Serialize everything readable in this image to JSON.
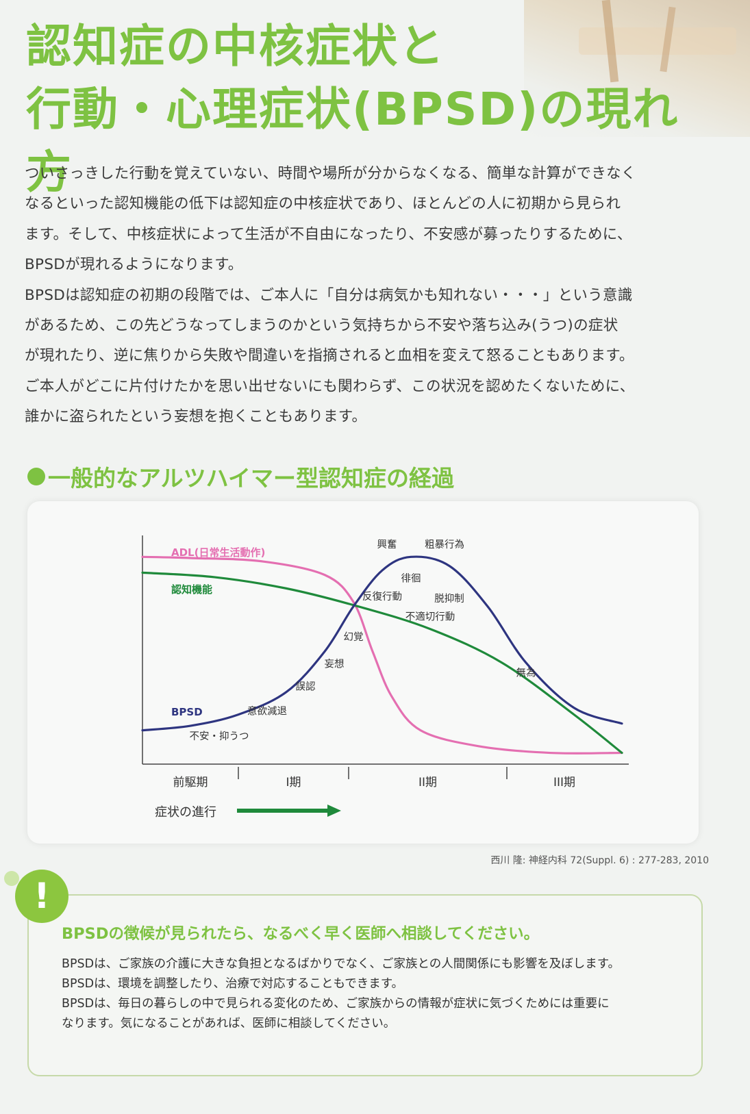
{
  "title": {
    "line1": "認知症の中核症状と",
    "line2": "行動・心理症状(BPSD)の現れ方"
  },
  "intro_lines": [
    "ついさっきした行動を覚えていない、時間や場所が分からなくなる、簡単な計算ができなく",
    "なるといった認知機能の低下は認知症の中核症状であり、ほとんどの人に初期から見られ",
    "ます。そして、中核症状によって生活が不自由になったり、不安感が募ったりするために、",
    "BPSDが現れるようになります。",
    "BPSDは認知症の初期の段階では、ご本人に「自分は病気かも知れない・・・」という意識",
    "があるため、この先どうなってしまうのかという気持ちから不安や落ち込み(うつ)の症状",
    "が現れたり、逆に焦りから失敗や間違いを指摘されると血相を変えて怒ることもあります。",
    "ご本人がどこに片付けたかを思い出せないにも関わらず、この状況を認めたくないために、",
    "誰かに盗られたという妄想を抱くこともあります。"
  ],
  "section_heading": "一般的なアルツハイマー型認知症の経過",
  "chart_data": {
    "type": "line",
    "x_stages": [
      "前駆期",
      "I期",
      "II期",
      "III期"
    ],
    "progress_label": "症状の進行",
    "series": [
      {
        "name": "ADL(日常生活動作)",
        "color": "#e46fb1",
        "values": [
          [
            0,
            0.92
          ],
          [
            0.1,
            0.915
          ],
          [
            0.25,
            0.9
          ],
          [
            0.38,
            0.84
          ],
          [
            0.44,
            0.72
          ],
          [
            0.48,
            0.5
          ],
          [
            0.52,
            0.3
          ],
          [
            0.58,
            0.15
          ],
          [
            0.7,
            0.08
          ],
          [
            0.85,
            0.05
          ],
          [
            1.0,
            0.05
          ]
        ]
      },
      {
        "name": "認知機能",
        "color": "#1f8a3b",
        "values": [
          [
            0,
            0.85
          ],
          [
            0.15,
            0.83
          ],
          [
            0.3,
            0.78
          ],
          [
            0.45,
            0.7
          ],
          [
            0.6,
            0.6
          ],
          [
            0.75,
            0.45
          ],
          [
            0.9,
            0.22
          ],
          [
            1.0,
            0.05
          ]
        ]
      },
      {
        "name": "BPSD",
        "color": "#2e3580",
        "values": [
          [
            0,
            0.15
          ],
          [
            0.1,
            0.17
          ],
          [
            0.2,
            0.22
          ],
          [
            0.3,
            0.32
          ],
          [
            0.38,
            0.5
          ],
          [
            0.44,
            0.7
          ],
          [
            0.5,
            0.86
          ],
          [
            0.56,
            0.92
          ],
          [
            0.64,
            0.88
          ],
          [
            0.72,
            0.7
          ],
          [
            0.8,
            0.45
          ],
          [
            0.9,
            0.25
          ],
          [
            1.0,
            0.18
          ]
        ]
      }
    ],
    "annotations": [
      {
        "text": "不安・抑うつ",
        "x": 0.16,
        "y": 0.11
      },
      {
        "text": "意欲減退",
        "x": 0.26,
        "y": 0.22
      },
      {
        "text": "誤認",
        "x": 0.34,
        "y": 0.33
      },
      {
        "text": "妄想",
        "x": 0.4,
        "y": 0.43
      },
      {
        "text": "幻覚",
        "x": 0.44,
        "y": 0.55
      },
      {
        "text": "反復行動",
        "x": 0.5,
        "y": 0.73
      },
      {
        "text": "徘徊",
        "x": 0.56,
        "y": 0.81
      },
      {
        "text": "興奮",
        "x": 0.51,
        "y": 0.96
      },
      {
        "text": "粗暴行為",
        "x": 0.63,
        "y": 0.96
      },
      {
        "text": "脱抑制",
        "x": 0.64,
        "y": 0.72
      },
      {
        "text": "不適切行動",
        "x": 0.6,
        "y": 0.64
      },
      {
        "text": "無為",
        "x": 0.8,
        "y": 0.39
      }
    ]
  },
  "citation": "西川 隆: 神経内科 72(Suppl. 6) : 277-283, 2010",
  "note": {
    "icon_symbol": "!",
    "heading": "BPSDの徴候が見られたら、なるべく早く医師へ相談してください。",
    "lines": [
      "BPSDは、ご家族の介護に大きな負担となるばかりでなく、ご家族との人間関係にも影響を及ぼします。",
      "BPSDは、環境を調整したり、治療で対応することもできます。",
      "BPSDは、毎日の暮らしの中で見られる変化のため、ご家族からの情報が症状に気づくためには重要に",
      "なります。気になることがあれば、医師に相談してください。"
    ]
  },
  "colors": {
    "accent_green": "#7ec242",
    "adl_pink": "#e46fb1",
    "cognition_green": "#1f8a3b",
    "bpsd_navy": "#2e3580"
  }
}
